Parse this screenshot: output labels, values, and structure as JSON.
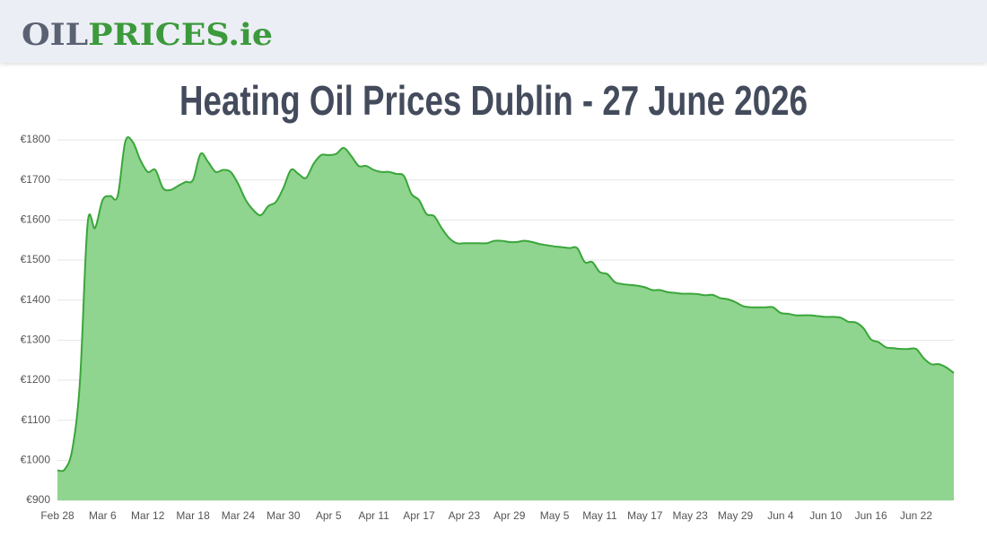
{
  "header": {
    "logo_main": "OIL",
    "logo_accent": "PRICES.ie"
  },
  "chart_data": {
    "type": "area",
    "title": "Heating Oil Prices Dublin - 27 June 2026",
    "color": "#3aa63a",
    "fill_color": "#8fd48f",
    "grid": true,
    "categories": [
      "Feb 28",
      null,
      null,
      null,
      null,
      null,
      "Mar 6",
      null,
      null,
      null,
      null,
      null,
      "Mar 12",
      null,
      null,
      null,
      null,
      null,
      "Mar 18",
      null,
      null,
      null,
      null,
      null,
      "Mar 24",
      null,
      null,
      null,
      null,
      null,
      "Mar 30",
      null,
      null,
      null,
      null,
      null,
      "Apr 5",
      null,
      null,
      null,
      null,
      null,
      "Apr 11",
      null,
      null,
      null,
      null,
      null,
      "Apr 17",
      null,
      null,
      null,
      null,
      null,
      "Apr 23",
      null,
      null,
      null,
      null,
      null,
      "Apr 29",
      null,
      null,
      null,
      null,
      null,
      "May 5",
      null,
      null,
      null,
      null,
      null,
      "May 11",
      null,
      null,
      null,
      null,
      null,
      "May 17",
      null,
      null,
      null,
      null,
      null,
      "May 23",
      null,
      null,
      null,
      null,
      null,
      "May 29",
      null,
      null,
      null,
      null,
      null,
      "Jun 4",
      null,
      null,
      null,
      null,
      null,
      "Jun 10",
      null,
      null,
      null,
      null,
      null,
      "Jun 16",
      null,
      null,
      null,
      null,
      null,
      "Jun 22",
      null,
      null,
      null,
      null,
      null
    ],
    "values": [
      975,
      978,
      1030,
      1200,
      1590,
      1580,
      1650,
      1660,
      1660,
      1795,
      1795,
      1750,
      1720,
      1725,
      1680,
      1675,
      1685,
      1695,
      1700,
      1765,
      1745,
      1720,
      1725,
      1720,
      1690,
      1650,
      1625,
      1612,
      1635,
      1645,
      1680,
      1725,
      1715,
      1705,
      1740,
      1762,
      1762,
      1765,
      1780,
      1760,
      1735,
      1735,
      1725,
      1720,
      1720,
      1715,
      1710,
      1665,
      1650,
      1615,
      1610,
      1580,
      1555,
      1542,
      1542,
      1542,
      1542,
      1542,
      1548,
      1548,
      1545,
      1545,
      1548,
      1545,
      1540,
      1537,
      1534,
      1532,
      1530,
      1530,
      1495,
      1495,
      1470,
      1465,
      1445,
      1440,
      1438,
      1436,
      1432,
      1425,
      1425,
      1420,
      1418,
      1416,
      1416,
      1415,
      1412,
      1413,
      1405,
      1402,
      1395,
      1385,
      1382,
      1382,
      1382,
      1382,
      1368,
      1366,
      1362,
      1362,
      1362,
      1360,
      1358,
      1358,
      1356,
      1346,
      1344,
      1330,
      1302,
      1295,
      1282,
      1280,
      1278,
      1278,
      1278,
      1255,
      1240,
      1240,
      1232,
      1218
    ],
    "ylim": [
      900,
      1800
    ],
    "yticks": [
      {
        "value": 900,
        "label": "€900"
      },
      {
        "value": 1000,
        "label": "€1000"
      },
      {
        "value": 1100,
        "label": "€1100"
      },
      {
        "value": 1200,
        "label": "€1200"
      },
      {
        "value": 1300,
        "label": "€1300"
      },
      {
        "value": 1400,
        "label": "€1400"
      },
      {
        "value": 1500,
        "label": "€1500"
      },
      {
        "value": 1600,
        "label": "€1600"
      },
      {
        "value": 1700,
        "label": "€1700"
      },
      {
        "value": 1800,
        "label": "€1800"
      }
    ]
  }
}
